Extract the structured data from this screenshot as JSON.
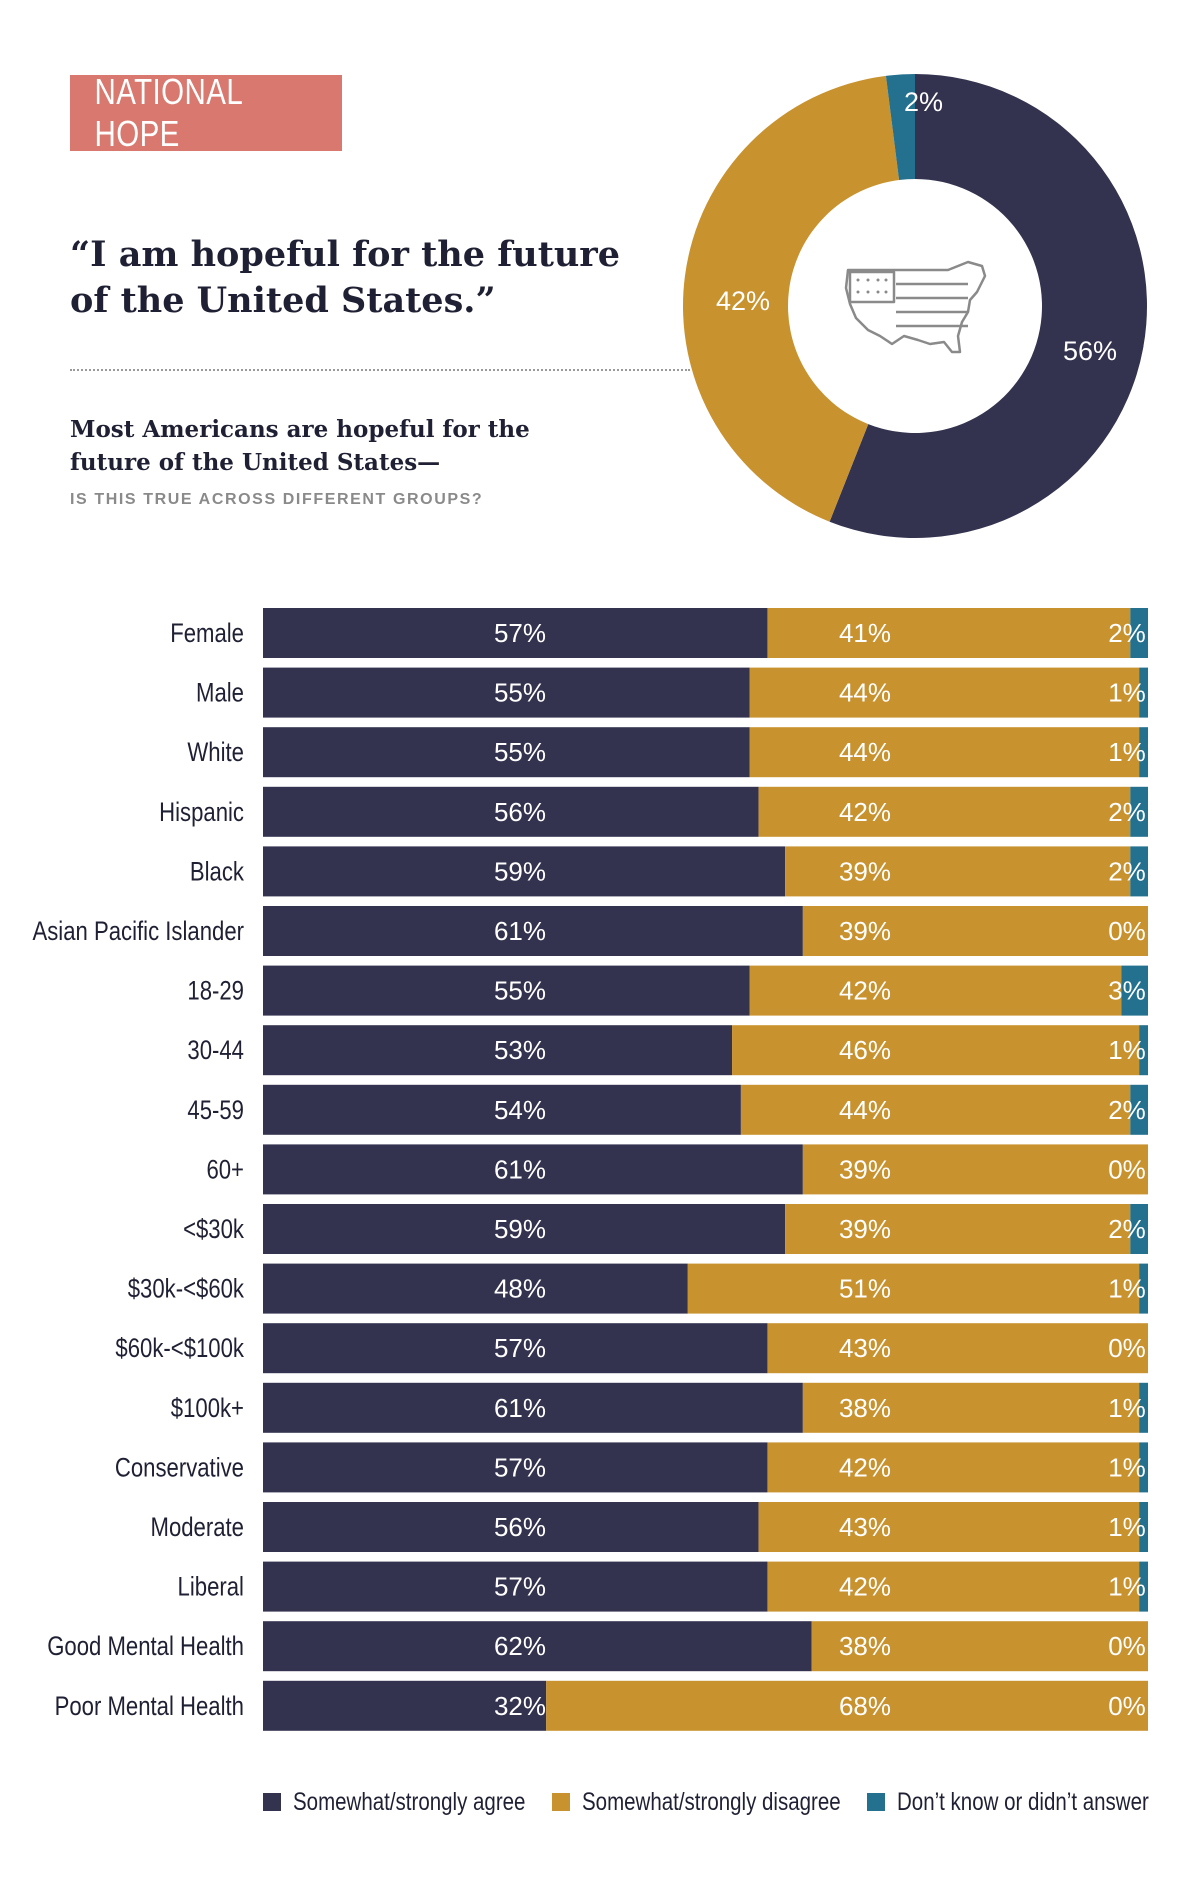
{
  "header": {
    "tag": "NATIONAL HOPE",
    "quote_line1": "“I am hopeful for the future",
    "quote_line2": "of the United States.”",
    "subtitle_line1": "Most Americans are hopeful for the",
    "subtitle_line2": "future of the United States—",
    "subnote": "IS THIS TRUE ACROSS DIFFERENT GROUPS?"
  },
  "colors": {
    "agree": "#33334f",
    "disagree": "#c8922f",
    "dontknow": "#23708f",
    "tag_bg": "#d9786e",
    "icon": "#8a8a8a"
  },
  "chart_data": [
    {
      "type": "pie",
      "variant": "donut",
      "center_icon": "us-flag-map-icon",
      "slices": [
        {
          "series": "Somewhat/strongly agree",
          "value": 56,
          "label": "56%"
        },
        {
          "series": "Somewhat/strongly disagree",
          "value": 42,
          "label": "42%"
        },
        {
          "series": "Don’t know or didn’t answer",
          "value": 2,
          "label": "2%"
        }
      ]
    },
    {
      "type": "bar",
      "orientation": "horizontal",
      "stacked": true,
      "percent_suffix": "%",
      "xlim": [
        0,
        100
      ],
      "categories": [
        "Female",
        "Male",
        "White",
        "Hispanic",
        "Black",
        "Asian Pacific Islander",
        "18-29",
        "30-44",
        "45-59",
        "60+",
        "<$30k",
        "$30k-<$60k",
        "$60k-<$100k",
        "$100k+",
        "Conservative",
        "Moderate",
        "Liberal",
        "Good Mental Health",
        "Poor Mental Health"
      ],
      "series": [
        {
          "name": "Somewhat/strongly agree",
          "values": [
            57,
            55,
            55,
            56,
            59,
            61,
            55,
            53,
            54,
            61,
            59,
            48,
            57,
            61,
            57,
            56,
            57,
            62,
            32
          ]
        },
        {
          "name": "Somewhat/strongly disagree",
          "values": [
            41,
            44,
            44,
            42,
            39,
            39,
            42,
            46,
            44,
            39,
            39,
            51,
            43,
            38,
            42,
            43,
            42,
            38,
            68
          ]
        },
        {
          "name": "Don’t know or didn’t answer",
          "values": [
            2,
            1,
            1,
            2,
            2,
            0,
            3,
            1,
            2,
            0,
            2,
            1,
            0,
            1,
            1,
            1,
            1,
            0,
            0
          ]
        }
      ],
      "legend": {
        "position": "bottom",
        "items": [
          "Somewhat/strongly agree",
          "Somewhat/strongly disagree",
          "Don’t know or didn’t answer"
        ]
      }
    }
  ]
}
